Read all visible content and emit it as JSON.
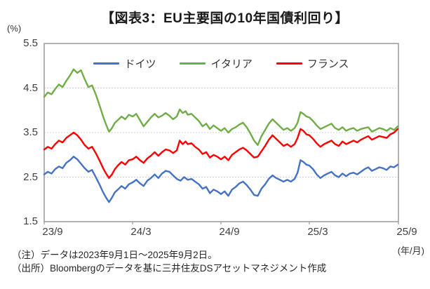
{
  "header": {
    "unit_label": "(%)",
    "title": "【図表3：EU主要国の10年国債利回り】"
  },
  "footer": {
    "note": "（注）データは2023年9月1日～2025年9月2日。",
    "source": "（出所）Bloombergのデータを基に三井住友DSアセットマネジメント作成",
    "xaxis_unit": "(年/月)"
  },
  "chart_data": {
    "type": "line",
    "title": "EU主要国の10年国債利回り",
    "ylabel": "%",
    "xlabel": "年/月",
    "ylim": [
      1.5,
      5.5
    ],
    "yticks": [
      "5.5",
      "4.5",
      "3.5",
      "2.5",
      "1.5"
    ],
    "xlim_months": [
      0,
      24.05
    ],
    "xticks": [
      {
        "label": "23/9",
        "t": 0
      },
      {
        "label": "24/3",
        "t": 6
      },
      {
        "label": "24/9",
        "t": 12
      },
      {
        "label": "25/3",
        "t": 18
      },
      {
        "label": "25/9",
        "t": 24.05
      }
    ],
    "grid": "horizontal-dotted",
    "grid_color": "#d2d2d2",
    "border_color": "#999999",
    "legend_position": "top-inside",
    "series": [
      {
        "name": "ドイツ",
        "color": "#4472C4",
        "points": [
          [
            0,
            2.56
          ],
          [
            0.25,
            2.62
          ],
          [
            0.5,
            2.58
          ],
          [
            0.75,
            2.68
          ],
          [
            1.0,
            2.74
          ],
          [
            1.25,
            2.7
          ],
          [
            1.5,
            2.82
          ],
          [
            1.75,
            2.88
          ],
          [
            2.0,
            2.96
          ],
          [
            2.25,
            2.9
          ],
          [
            2.5,
            2.8
          ],
          [
            2.75,
            2.7
          ],
          [
            3.0,
            2.62
          ],
          [
            3.25,
            2.66
          ],
          [
            3.5,
            2.5
          ],
          [
            3.75,
            2.34
          ],
          [
            4.0,
            2.16
          ],
          [
            4.2,
            2.04
          ],
          [
            4.4,
            1.94
          ],
          [
            4.6,
            2.04
          ],
          [
            4.8,
            2.16
          ],
          [
            5.0,
            2.22
          ],
          [
            5.25,
            2.3
          ],
          [
            5.5,
            2.24
          ],
          [
            5.75,
            2.34
          ],
          [
            6.0,
            2.38
          ],
          [
            6.25,
            2.44
          ],
          [
            6.5,
            2.36
          ],
          [
            6.75,
            2.3
          ],
          [
            7.0,
            2.42
          ],
          [
            7.25,
            2.48
          ],
          [
            7.5,
            2.56
          ],
          [
            7.75,
            2.48
          ],
          [
            8.0,
            2.58
          ],
          [
            8.25,
            2.64
          ],
          [
            8.5,
            2.62
          ],
          [
            8.75,
            2.54
          ],
          [
            9.0,
            2.46
          ],
          [
            9.25,
            2.42
          ],
          [
            9.5,
            2.5
          ],
          [
            9.75,
            2.44
          ],
          [
            10.0,
            2.46
          ],
          [
            10.25,
            2.4
          ],
          [
            10.5,
            2.34
          ],
          [
            10.75,
            2.24
          ],
          [
            11.0,
            2.28
          ],
          [
            11.25,
            2.14
          ],
          [
            11.5,
            2.22
          ],
          [
            11.75,
            2.18
          ],
          [
            12.0,
            2.12
          ],
          [
            12.25,
            2.18
          ],
          [
            12.5,
            2.08
          ],
          [
            12.75,
            2.22
          ],
          [
            13.0,
            2.28
          ],
          [
            13.25,
            2.36
          ],
          [
            13.5,
            2.4
          ],
          [
            13.75,
            2.32
          ],
          [
            14.0,
            2.22
          ],
          [
            14.25,
            2.1
          ],
          [
            14.5,
            2.08
          ],
          [
            14.75,
            2.24
          ],
          [
            15.0,
            2.34
          ],
          [
            15.25,
            2.46
          ],
          [
            15.5,
            2.54
          ],
          [
            15.75,
            2.48
          ],
          [
            16.0,
            2.44
          ],
          [
            16.25,
            2.4
          ],
          [
            16.5,
            2.44
          ],
          [
            16.75,
            2.4
          ],
          [
            17.0,
            2.46
          ],
          [
            17.2,
            2.6
          ],
          [
            17.4,
            2.88
          ],
          [
            17.6,
            2.84
          ],
          [
            17.8,
            2.78
          ],
          [
            18.0,
            2.76
          ],
          [
            18.25,
            2.68
          ],
          [
            18.5,
            2.56
          ],
          [
            18.75,
            2.48
          ],
          [
            19.0,
            2.54
          ],
          [
            19.25,
            2.58
          ],
          [
            19.5,
            2.62
          ],
          [
            19.75,
            2.54
          ],
          [
            20.0,
            2.5
          ],
          [
            20.25,
            2.58
          ],
          [
            20.5,
            2.52
          ],
          [
            20.75,
            2.58
          ],
          [
            21.0,
            2.6
          ],
          [
            21.25,
            2.56
          ],
          [
            21.5,
            2.62
          ],
          [
            21.75,
            2.68
          ],
          [
            22.0,
            2.72
          ],
          [
            22.25,
            2.64
          ],
          [
            22.5,
            2.68
          ],
          [
            22.75,
            2.72
          ],
          [
            23.0,
            2.7
          ],
          [
            23.25,
            2.66
          ],
          [
            23.5,
            2.74
          ],
          [
            23.75,
            2.72
          ],
          [
            24.0,
            2.78
          ]
        ]
      },
      {
        "name": "イタリア",
        "color": "#70AD47",
        "points": [
          [
            0,
            4.3
          ],
          [
            0.25,
            4.4
          ],
          [
            0.5,
            4.36
          ],
          [
            0.75,
            4.48
          ],
          [
            1.0,
            4.58
          ],
          [
            1.25,
            4.52
          ],
          [
            1.5,
            4.66
          ],
          [
            1.75,
            4.78
          ],
          [
            2.0,
            4.92
          ],
          [
            2.25,
            4.84
          ],
          [
            2.5,
            4.9
          ],
          [
            2.75,
            4.7
          ],
          [
            3.0,
            4.52
          ],
          [
            3.25,
            4.56
          ],
          [
            3.5,
            4.36
          ],
          [
            3.75,
            4.12
          ],
          [
            4.0,
            3.86
          ],
          [
            4.2,
            3.68
          ],
          [
            4.4,
            3.52
          ],
          [
            4.6,
            3.6
          ],
          [
            4.8,
            3.72
          ],
          [
            5.0,
            3.78
          ],
          [
            5.25,
            3.86
          ],
          [
            5.5,
            3.8
          ],
          [
            5.75,
            3.9
          ],
          [
            6.0,
            3.86
          ],
          [
            6.25,
            3.92
          ],
          [
            6.5,
            3.78
          ],
          [
            6.75,
            3.64
          ],
          [
            7.0,
            3.74
          ],
          [
            7.25,
            3.84
          ],
          [
            7.5,
            3.92
          ],
          [
            7.75,
            3.84
          ],
          [
            8.0,
            3.88
          ],
          [
            8.25,
            3.94
          ],
          [
            8.5,
            3.88
          ],
          [
            8.75,
            3.8
          ],
          [
            9.0,
            3.86
          ],
          [
            9.2,
            4.02
          ],
          [
            9.4,
            3.94
          ],
          [
            9.6,
            3.98
          ],
          [
            9.75,
            3.9
          ],
          [
            10.0,
            3.92
          ],
          [
            10.25,
            3.84
          ],
          [
            10.5,
            3.76
          ],
          [
            10.75,
            3.64
          ],
          [
            11.0,
            3.7
          ],
          [
            11.25,
            3.58
          ],
          [
            11.5,
            3.66
          ],
          [
            11.75,
            3.6
          ],
          [
            12.0,
            3.54
          ],
          [
            12.25,
            3.6
          ],
          [
            12.5,
            3.5
          ],
          [
            12.75,
            3.58
          ],
          [
            13.0,
            3.62
          ],
          [
            13.25,
            3.68
          ],
          [
            13.5,
            3.72
          ],
          [
            13.75,
            3.62
          ],
          [
            14.0,
            3.48
          ],
          [
            14.25,
            3.32
          ],
          [
            14.5,
            3.22
          ],
          [
            14.75,
            3.42
          ],
          [
            15.0,
            3.56
          ],
          [
            15.25,
            3.7
          ],
          [
            15.5,
            3.8
          ],
          [
            15.75,
            3.72
          ],
          [
            16.0,
            3.64
          ],
          [
            16.25,
            3.56
          ],
          [
            16.5,
            3.6
          ],
          [
            16.75,
            3.54
          ],
          [
            17.0,
            3.6
          ],
          [
            17.2,
            3.72
          ],
          [
            17.4,
            3.96
          ],
          [
            17.6,
            3.92
          ],
          [
            17.8,
            3.86
          ],
          [
            18.0,
            3.84
          ],
          [
            18.25,
            3.76
          ],
          [
            18.5,
            3.66
          ],
          [
            18.75,
            3.58
          ],
          [
            19.0,
            3.62
          ],
          [
            19.25,
            3.66
          ],
          [
            19.5,
            3.7
          ],
          [
            19.75,
            3.6
          ],
          [
            20.0,
            3.56
          ],
          [
            20.25,
            3.62
          ],
          [
            20.5,
            3.54
          ],
          [
            20.75,
            3.58
          ],
          [
            21.0,
            3.6
          ],
          [
            21.25,
            3.54
          ],
          [
            21.5,
            3.58
          ],
          [
            21.75,
            3.6
          ],
          [
            22.0,
            3.62
          ],
          [
            22.25,
            3.52
          ],
          [
            22.5,
            3.56
          ],
          [
            22.75,
            3.6
          ],
          [
            23.0,
            3.58
          ],
          [
            23.25,
            3.54
          ],
          [
            23.5,
            3.6
          ],
          [
            23.75,
            3.56
          ],
          [
            24.0,
            3.64
          ]
        ]
      },
      {
        "name": "フランス",
        "color": "#FF0000",
        "points": [
          [
            0,
            3.12
          ],
          [
            0.25,
            3.18
          ],
          [
            0.5,
            3.14
          ],
          [
            0.75,
            3.24
          ],
          [
            1.0,
            3.32
          ],
          [
            1.25,
            3.28
          ],
          [
            1.5,
            3.38
          ],
          [
            1.75,
            3.44
          ],
          [
            2.0,
            3.5
          ],
          [
            2.25,
            3.44
          ],
          [
            2.5,
            3.34
          ],
          [
            2.75,
            3.22
          ],
          [
            3.0,
            3.14
          ],
          [
            3.25,
            3.18
          ],
          [
            3.5,
            3.04
          ],
          [
            3.75,
            2.88
          ],
          [
            4.0,
            2.7
          ],
          [
            4.2,
            2.58
          ],
          [
            4.4,
            2.48
          ],
          [
            4.6,
            2.56
          ],
          [
            4.8,
            2.68
          ],
          [
            5.0,
            2.76
          ],
          [
            5.25,
            2.84
          ],
          [
            5.5,
            2.78
          ],
          [
            5.75,
            2.88
          ],
          [
            6.0,
            2.9
          ],
          [
            6.25,
            2.96
          ],
          [
            6.5,
            2.88
          ],
          [
            6.75,
            2.82
          ],
          [
            7.0,
            2.92
          ],
          [
            7.25,
            2.98
          ],
          [
            7.5,
            3.06
          ],
          [
            7.75,
            2.98
          ],
          [
            8.0,
            3.06
          ],
          [
            8.25,
            3.12
          ],
          [
            8.5,
            3.1
          ],
          [
            8.75,
            3.04
          ],
          [
            9.0,
            3.1
          ],
          [
            9.2,
            3.32
          ],
          [
            9.4,
            3.24
          ],
          [
            9.6,
            3.3
          ],
          [
            9.75,
            3.24
          ],
          [
            10.0,
            3.26
          ],
          [
            10.25,
            3.18
          ],
          [
            10.5,
            3.12
          ],
          [
            10.75,
            3.02
          ],
          [
            11.0,
            3.06
          ],
          [
            11.25,
            2.94
          ],
          [
            11.5,
            3.0
          ],
          [
            11.75,
            2.96
          ],
          [
            12.0,
            2.9
          ],
          [
            12.25,
            2.96
          ],
          [
            12.5,
            2.88
          ],
          [
            12.75,
            3.0
          ],
          [
            13.0,
            3.06
          ],
          [
            13.25,
            3.12
          ],
          [
            13.5,
            3.16
          ],
          [
            13.75,
            3.1
          ],
          [
            14.0,
            3.02
          ],
          [
            14.25,
            2.94
          ],
          [
            14.5,
            2.96
          ],
          [
            14.75,
            3.08
          ],
          [
            15.0,
            3.2
          ],
          [
            15.25,
            3.34
          ],
          [
            15.5,
            3.44
          ],
          [
            15.75,
            3.36
          ],
          [
            16.0,
            3.28
          ],
          [
            16.25,
            3.2
          ],
          [
            16.5,
            3.24
          ],
          [
            16.75,
            3.18
          ],
          [
            17.0,
            3.24
          ],
          [
            17.2,
            3.38
          ],
          [
            17.4,
            3.58
          ],
          [
            17.6,
            3.54
          ],
          [
            17.8,
            3.46
          ],
          [
            18.0,
            3.44
          ],
          [
            18.25,
            3.36
          ],
          [
            18.5,
            3.26
          ],
          [
            18.75,
            3.18
          ],
          [
            19.0,
            3.24
          ],
          [
            19.25,
            3.28
          ],
          [
            19.5,
            3.32
          ],
          [
            19.75,
            3.24
          ],
          [
            20.0,
            3.2
          ],
          [
            20.25,
            3.3
          ],
          [
            20.5,
            3.24
          ],
          [
            20.75,
            3.28
          ],
          [
            21.0,
            3.32
          ],
          [
            21.25,
            3.28
          ],
          [
            21.5,
            3.34
          ],
          [
            21.75,
            3.38
          ],
          [
            22.0,
            3.42
          ],
          [
            22.25,
            3.34
          ],
          [
            22.5,
            3.38
          ],
          [
            22.75,
            3.42
          ],
          [
            23.0,
            3.4
          ],
          [
            23.25,
            3.38
          ],
          [
            23.5,
            3.46
          ],
          [
            23.75,
            3.5
          ],
          [
            24.0,
            3.58
          ]
        ]
      }
    ]
  }
}
